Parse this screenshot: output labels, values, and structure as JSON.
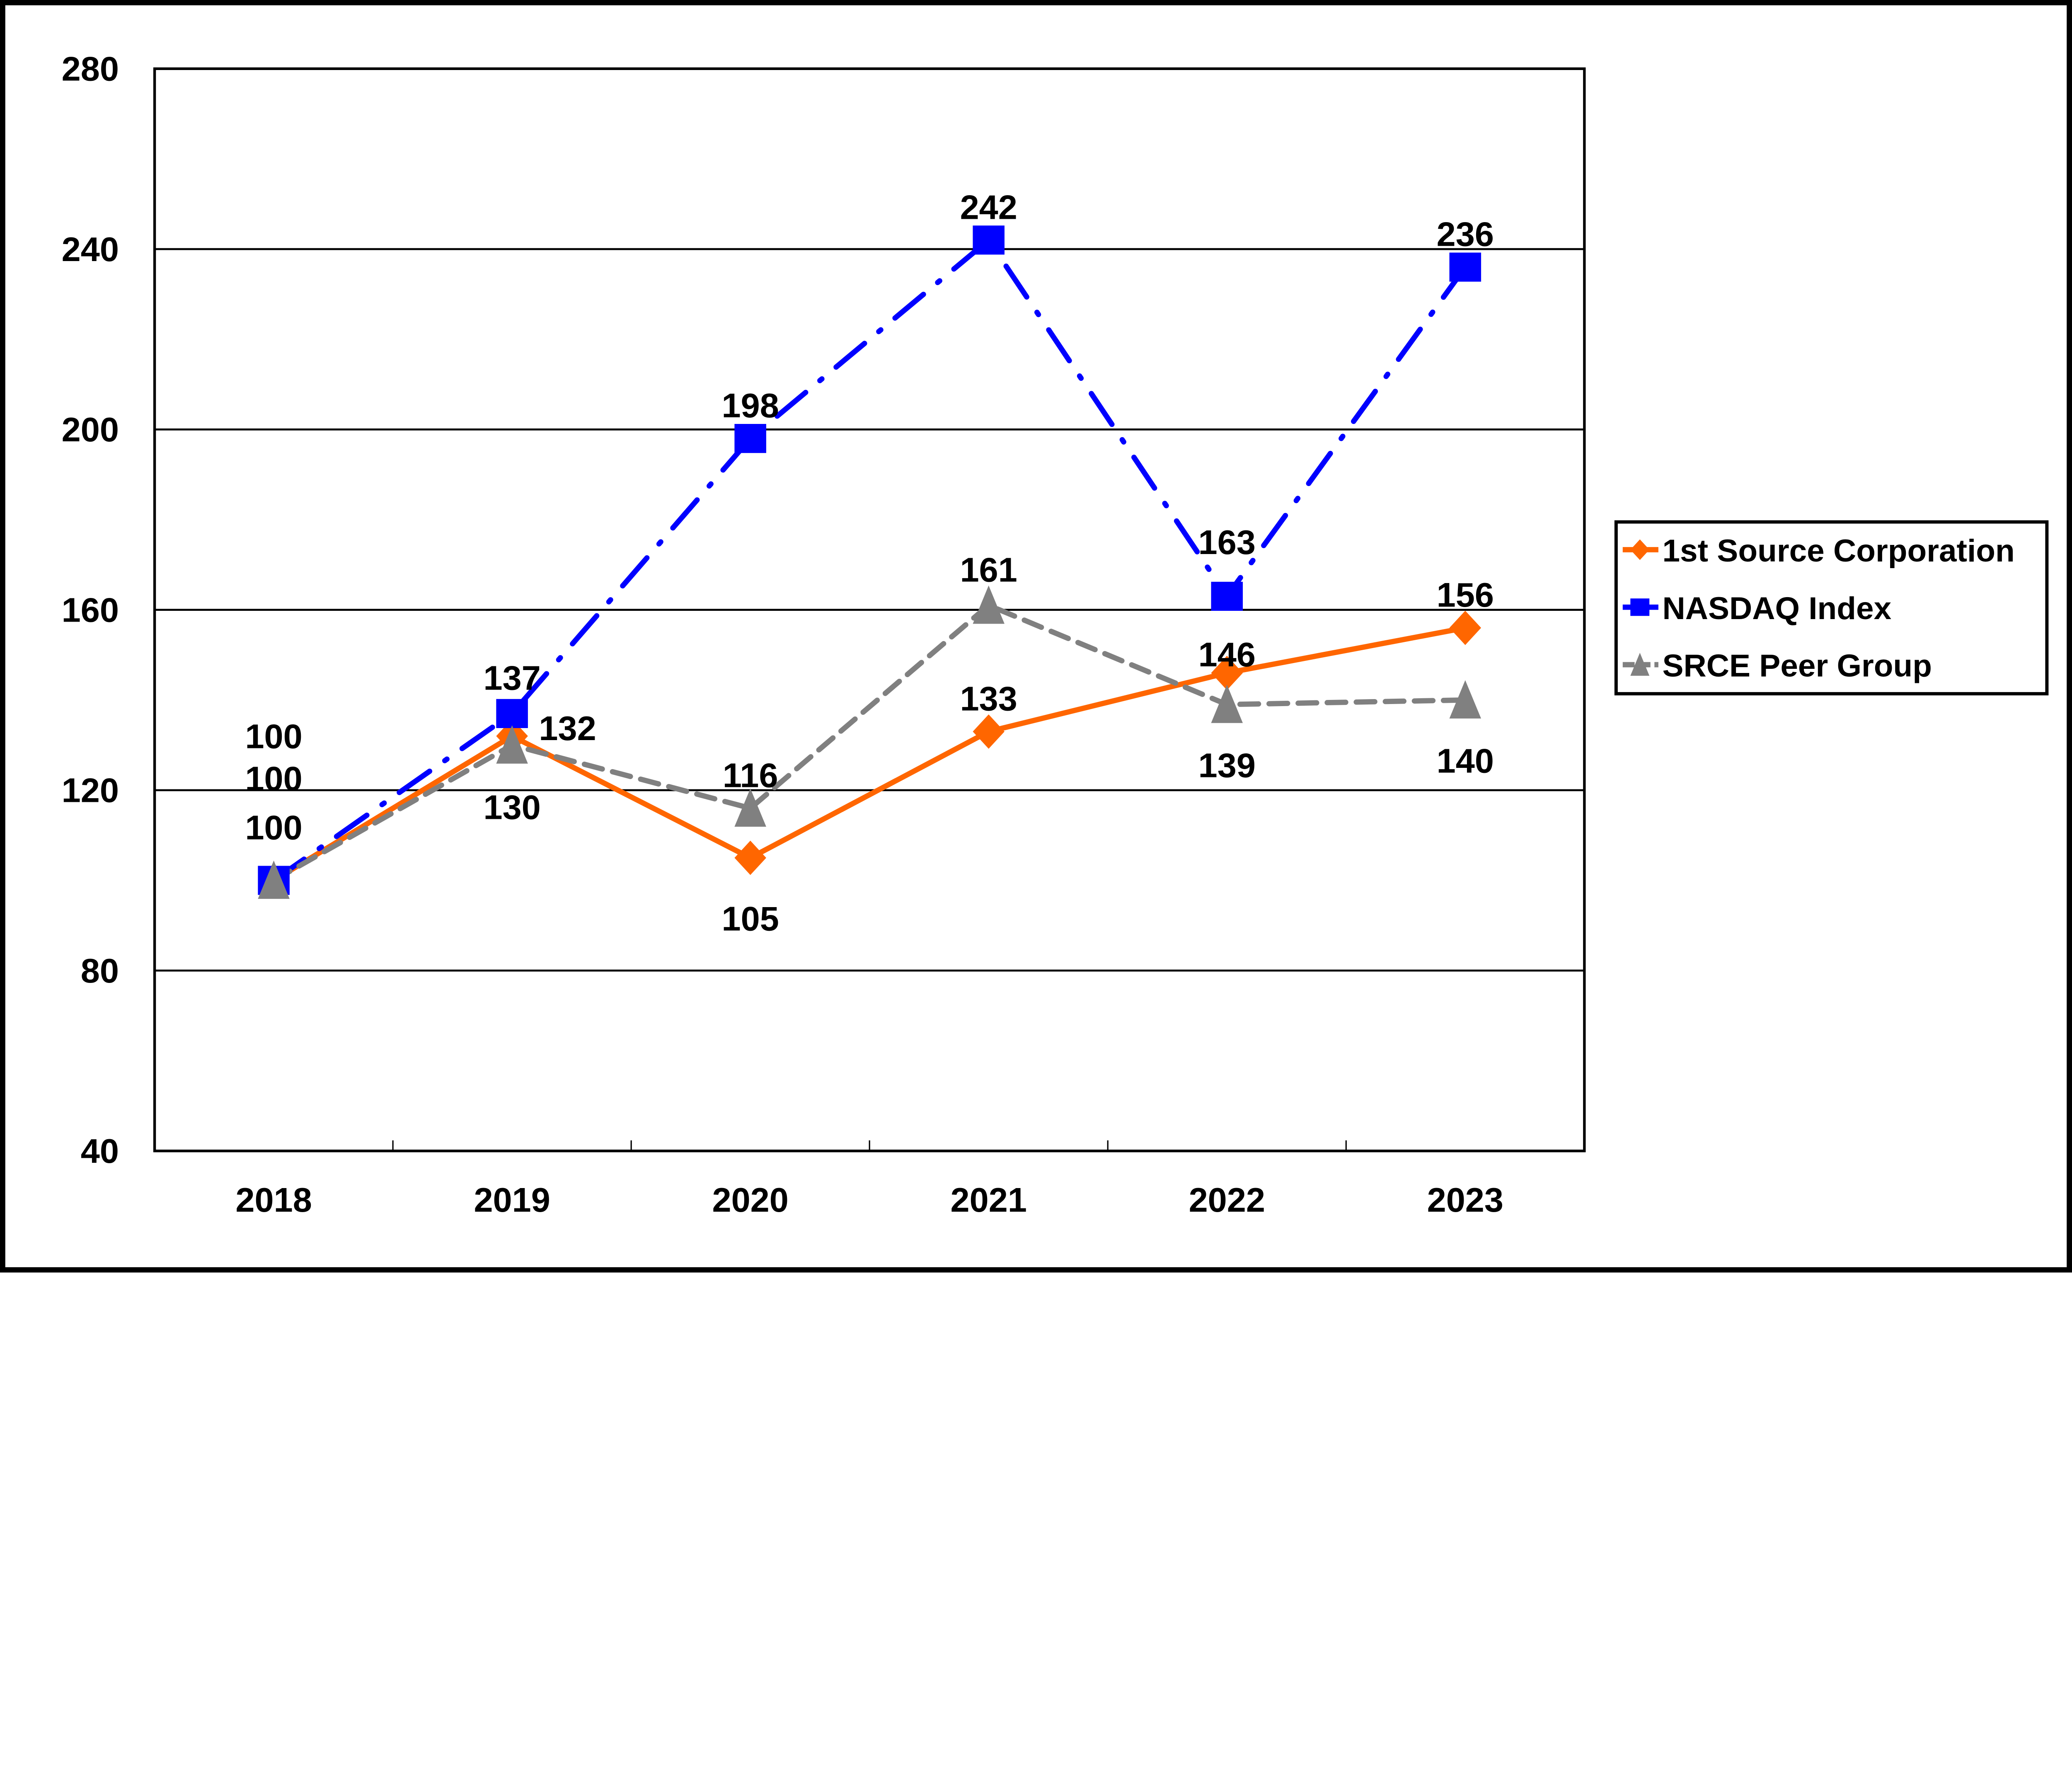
{
  "chart_data": {
    "type": "line",
    "title": "",
    "xlabel": "",
    "ylabel": "",
    "categories": [
      "2018",
      "2019",
      "2020",
      "2021",
      "2022",
      "2023"
    ],
    "ylim": [
      40,
      280
    ],
    "yticks": [
      "40",
      "80",
      "120",
      "160",
      "200",
      "240",
      "280"
    ],
    "grid": true,
    "legend_placement": "right",
    "series": [
      {
        "name": "1st Source Corporation",
        "values": [
          100,
          132,
          105,
          133,
          146,
          156
        ],
        "color": "#FF6600",
        "marker": "diamond",
        "line_style": "solid"
      },
      {
        "name": "NASDAQ Index",
        "values": [
          100,
          137,
          198,
          242,
          163,
          236
        ],
        "color": "#0000FF",
        "marker": "square",
        "line_style": "dash-dot"
      },
      {
        "name": "SRCE Peer Group",
        "values": [
          100,
          130,
          116,
          161,
          139,
          140
        ],
        "color": "#808080",
        "marker": "triangle",
        "line_style": "dashed"
      }
    ]
  }
}
